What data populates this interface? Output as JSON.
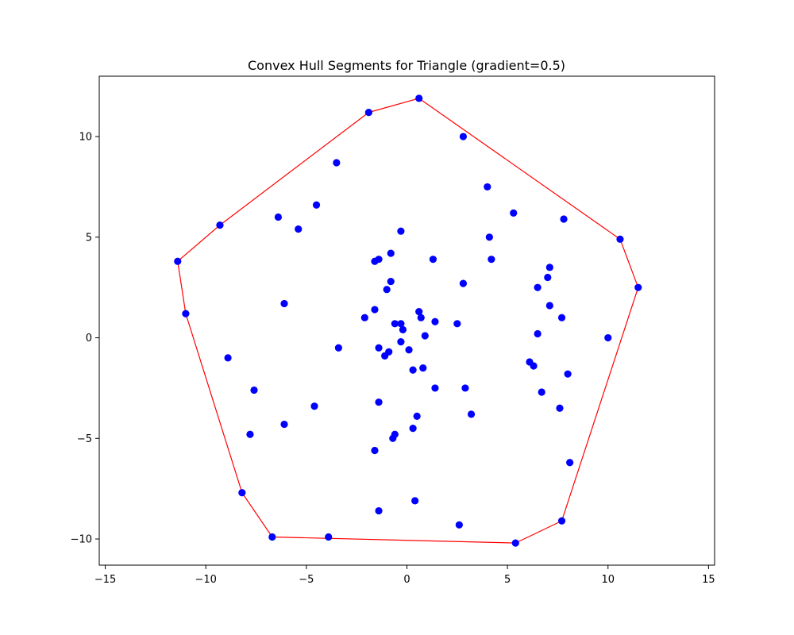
{
  "chart_data": {
    "type": "scatter",
    "title": "Convex Hull Segments for Triangle (gradient=0.5)",
    "xlabel": "",
    "ylabel": "",
    "xlim": [
      -15.3,
      15.3
    ],
    "ylim": [
      -11.3,
      13.0
    ],
    "xticks": [
      -15,
      -10,
      -5,
      0,
      5,
      10,
      15
    ],
    "yticks": [
      -10,
      -5,
      0,
      5,
      10
    ],
    "grid": false,
    "colors": {
      "points": "#0000ff",
      "hull": "#ff0000",
      "axes": "#000000"
    },
    "points": [
      [
        0.6,
        11.9
      ],
      [
        -1.9,
        11.2
      ],
      [
        2.8,
        10.0
      ],
      [
        -3.5,
        8.7
      ],
      [
        4.0,
        7.5
      ],
      [
        -6.4,
        6.0
      ],
      [
        -4.5,
        6.6
      ],
      [
        5.3,
        6.2
      ],
      [
        7.8,
        5.9
      ],
      [
        -9.3,
        5.6
      ],
      [
        -5.4,
        5.4
      ],
      [
        -0.3,
        5.3
      ],
      [
        4.1,
        5.0
      ],
      [
        10.6,
        4.9
      ],
      [
        -0.8,
        4.2
      ],
      [
        -1.4,
        3.9
      ],
      [
        -1.6,
        3.8
      ],
      [
        1.3,
        3.9
      ],
      [
        4.2,
        3.9
      ],
      [
        -11.4,
        3.8
      ],
      [
        7.1,
        3.5
      ],
      [
        7.0,
        3.0
      ],
      [
        -0.8,
        2.8
      ],
      [
        2.8,
        2.7
      ],
      [
        6.5,
        2.5
      ],
      [
        -1.0,
        2.4
      ],
      [
        11.5,
        2.5
      ],
      [
        -6.1,
        1.7
      ],
      [
        7.1,
        1.6
      ],
      [
        -1.6,
        1.4
      ],
      [
        0.6,
        1.3
      ],
      [
        0.7,
        1.0
      ],
      [
        -2.1,
        1.0
      ],
      [
        7.7,
        1.0
      ],
      [
        -11.0,
        1.2
      ],
      [
        1.4,
        0.8
      ],
      [
        2.5,
        0.7
      ],
      [
        -0.6,
        0.7
      ],
      [
        -0.3,
        0.7
      ],
      [
        -0.2,
        0.4
      ],
      [
        0.9,
        0.1
      ],
      [
        6.5,
        0.2
      ],
      [
        10.0,
        0.0
      ],
      [
        -3.4,
        -0.5
      ],
      [
        -0.3,
        -0.2
      ],
      [
        -1.4,
        -0.5
      ],
      [
        0.1,
        -0.6
      ],
      [
        -0.9,
        -0.7
      ],
      [
        -1.1,
        -0.9
      ],
      [
        -8.9,
        -1.0
      ],
      [
        6.1,
        -1.2
      ],
      [
        6.3,
        -1.4
      ],
      [
        0.8,
        -1.5
      ],
      [
        0.3,
        -1.6
      ],
      [
        8.0,
        -1.8
      ],
      [
        2.9,
        -2.5
      ],
      [
        -7.6,
        -2.6
      ],
      [
        1.4,
        -2.5
      ],
      [
        6.7,
        -2.7
      ],
      [
        -1.4,
        -3.2
      ],
      [
        -4.6,
        -3.4
      ],
      [
        7.6,
        -3.5
      ],
      [
        3.2,
        -3.8
      ],
      [
        0.5,
        -3.9
      ],
      [
        -6.1,
        -4.3
      ],
      [
        0.3,
        -4.5
      ],
      [
        -0.6,
        -4.8
      ],
      [
        -7.8,
        -4.8
      ],
      [
        -0.7,
        -5.0
      ],
      [
        -1.6,
        -5.6
      ],
      [
        8.1,
        -6.2
      ],
      [
        -8.2,
        -7.7
      ],
      [
        0.4,
        -8.1
      ],
      [
        -1.4,
        -8.6
      ],
      [
        7.7,
        -9.1
      ],
      [
        2.6,
        -9.3
      ],
      [
        -6.7,
        -9.9
      ],
      [
        -3.9,
        -9.9
      ],
      [
        5.4,
        -10.2
      ]
    ],
    "hull": [
      [
        0.6,
        11.9
      ],
      [
        10.6,
        4.9
      ],
      [
        11.5,
        2.5
      ],
      [
        7.7,
        -9.1
      ],
      [
        5.4,
        -10.2
      ],
      [
        -6.7,
        -9.9
      ],
      [
        -8.2,
        -7.7
      ],
      [
        -11.0,
        1.2
      ],
      [
        -11.4,
        3.8
      ],
      [
        -9.3,
        5.6
      ],
      [
        -1.9,
        11.2
      ],
      [
        0.6,
        11.9
      ]
    ]
  }
}
